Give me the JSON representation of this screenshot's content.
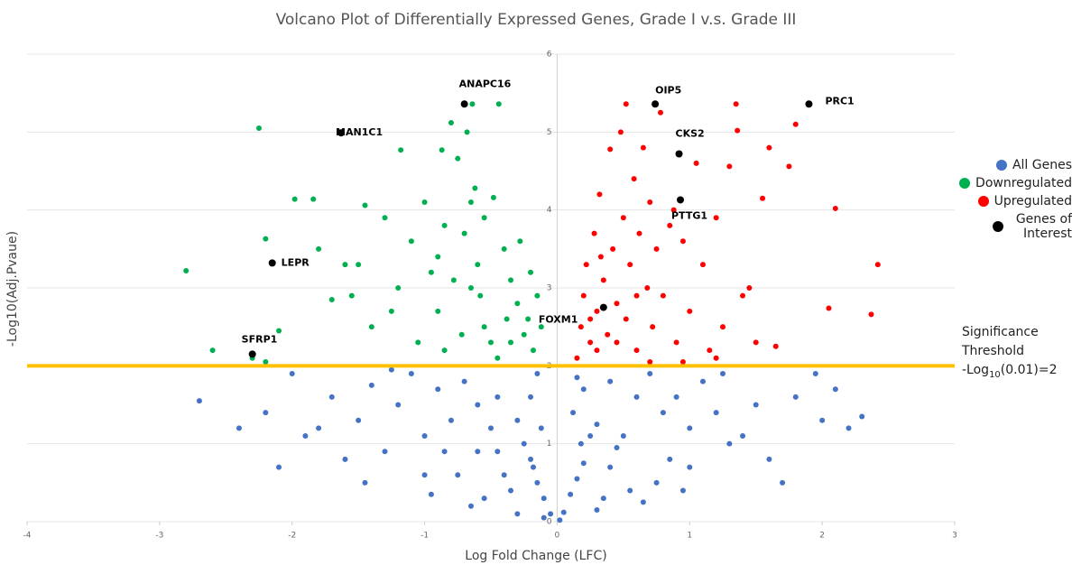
{
  "chart_data": {
    "type": "scatter",
    "title": "Volcano Plot of Differentially Expressed Genes, Grade I v.s. Grade III",
    "x_label": "Log Fold Change (LFC)",
    "y_label": "-Log10(Adj.Pvaue)",
    "xlim": [
      -4,
      3
    ],
    "xticks": [
      -4,
      -3,
      -2,
      -1,
      0,
      1,
      2,
      3
    ],
    "ylim": [
      0,
      6
    ],
    "yticks": [
      0,
      1,
      2,
      3,
      4,
      5,
      6
    ],
    "grid": true,
    "legend": "right",
    "threshold": 2,
    "threshold_color": "#ffc000",
    "annotation": {
      "title": "Significance Threshold",
      "prefix": "-Log",
      "sub": "10",
      "suffix": "(0.01)=2"
    },
    "series": [
      {
        "name": "All Genes",
        "color": "#4472c4",
        "x": [
          -0.05,
          0.05,
          -0.1,
          0.1,
          -0.15,
          0.15,
          -0.2,
          0.2,
          -0.25,
          0.25,
          -0.3,
          0.3,
          -0.2,
          0.2,
          -0.15,
          0.15,
          -0.4,
          0.4,
          -0.5,
          0.5,
          -0.6,
          0.6,
          -0.7,
          0.7,
          -0.35,
          0.35,
          -0.45,
          0.45,
          -0.55,
          0.55,
          -0.8,
          0.8,
          -0.9,
          0.9,
          -1.0,
          1.0,
          -1.1,
          1.1,
          -1.2,
          1.2,
          -1.3,
          1.3,
          -1.4,
          1.4,
          -1.5,
          1.5,
          -1.6,
          -1.7,
          -1.8,
          1.8,
          -2.0,
          2.0,
          -2.1,
          -2.2,
          2.2,
          -2.7,
          2.3,
          -1.9,
          1.6,
          -0.65,
          0.65,
          -0.75,
          0.75,
          -0.85,
          0.85,
          -0.3,
          0.3,
          -0.1,
          0.02,
          -1.0,
          1.0,
          -0.45,
          0.4,
          -0.6,
          1.7,
          -1.45,
          2.1,
          1.95,
          -2.4,
          1.25,
          -1.25,
          0.95,
          -0.95,
          0.12,
          -0.12,
          0.18,
          -0.18
        ],
        "values": [
          0.1,
          0.12,
          0.3,
          0.35,
          0.5,
          0.55,
          0.8,
          0.75,
          1.0,
          1.1,
          1.3,
          1.25,
          1.6,
          1.7,
          1.9,
          1.85,
          0.6,
          0.7,
          1.2,
          1.1,
          1.5,
          1.6,
          1.8,
          1.9,
          0.4,
          0.3,
          0.9,
          0.95,
          0.3,
          0.4,
          1.3,
          1.4,
          1.7,
          1.6,
          1.1,
          1.2,
          1.9,
          1.8,
          1.5,
          1.4,
          0.9,
          1.0,
          1.75,
          1.1,
          1.3,
          1.5,
          0.8,
          1.6,
          1.2,
          1.6,
          1.9,
          1.3,
          0.7,
          1.4,
          1.2,
          1.55,
          1.35,
          1.1,
          0.8,
          0.2,
          0.25,
          0.6,
          0.5,
          0.9,
          0.8,
          0.1,
          0.15,
          0.05,
          0.02,
          0.6,
          0.7,
          1.6,
          1.8,
          0.9,
          0.5,
          0.5,
          1.7,
          1.9,
          1.2,
          1.9,
          1.95,
          0.4,
          0.35,
          1.4,
          1.2,
          1.0,
          0.7
        ]
      },
      {
        "name": "Downregulated",
        "color": "#00b050",
        "x": [
          -2.8,
          -2.6,
          -2.25,
          -2.2,
          -2.1,
          -2.3,
          -2.2,
          -1.98,
          -1.8,
          -1.84,
          -1.7,
          -1.6,
          -1.5,
          -1.45,
          -1.4,
          -1.3,
          -1.2,
          -1.18,
          -1.1,
          -1.05,
          -1.0,
          -0.95,
          -0.9,
          -0.87,
          -0.85,
          -0.8,
          -0.78,
          -0.75,
          -0.72,
          -0.7,
          -0.68,
          -0.65,
          -0.64,
          -0.6,
          -0.58,
          -0.55,
          -0.5,
          -0.48,
          -0.44,
          -0.4,
          -0.38,
          -0.35,
          -0.3,
          -0.28,
          -0.25,
          -0.2,
          -0.18,
          -0.15,
          -0.12,
          -0.9,
          -1.25,
          -0.65,
          -0.45,
          -0.35,
          -0.22,
          -0.55,
          -0.85,
          -1.55,
          -0.62
        ],
        "values": [
          3.22,
          2.2,
          5.05,
          3.63,
          2.45,
          2.1,
          2.05,
          4.14,
          3.5,
          4.14,
          2.85,
          3.3,
          3.3,
          4.06,
          2.5,
          3.9,
          3.0,
          4.77,
          3.6,
          2.3,
          4.1,
          3.2,
          2.7,
          4.77,
          3.8,
          5.12,
          3.1,
          4.66,
          2.4,
          3.7,
          5.0,
          4.1,
          5.36,
          3.3,
          2.9,
          3.9,
          2.3,
          4.16,
          5.36,
          3.5,
          2.6,
          3.1,
          2.8,
          3.6,
          2.4,
          3.2,
          2.2,
          2.9,
          2.5,
          3.4,
          2.7,
          3.0,
          2.1,
          2.3,
          2.6,
          2.5,
          2.2,
          2.9,
          4.28
        ]
      },
      {
        "name": "Upregulated",
        "color": "#ff0000",
        "x": [
          0.15,
          0.18,
          0.2,
          0.22,
          0.25,
          0.28,
          0.3,
          0.32,
          0.35,
          0.38,
          0.4,
          0.42,
          0.45,
          0.48,
          0.5,
          0.52,
          0.52,
          0.55,
          0.58,
          0.6,
          0.62,
          0.65,
          0.68,
          0.7,
          0.72,
          0.75,
          0.78,
          0.8,
          0.85,
          0.88,
          0.9,
          0.95,
          1.0,
          1.05,
          1.1,
          1.15,
          1.2,
          1.25,
          1.3,
          1.35,
          1.36,
          1.4,
          1.45,
          1.5,
          1.55,
          1.6,
          1.65,
          1.75,
          1.8,
          2.05,
          2.1,
          2.37,
          2.42,
          1.2,
          0.95,
          0.3,
          0.45,
          0.25,
          0.6,
          0.33,
          0.7
        ],
        "values": [
          2.1,
          2.5,
          2.9,
          3.3,
          2.3,
          3.7,
          2.7,
          4.2,
          3.1,
          2.4,
          4.78,
          3.5,
          2.8,
          5.0,
          3.9,
          2.6,
          5.36,
          3.3,
          4.4,
          2.2,
          3.7,
          4.8,
          3.0,
          4.1,
          2.5,
          3.5,
          5.25,
          2.9,
          3.8,
          4.0,
          2.3,
          3.6,
          2.7,
          4.6,
          3.3,
          2.2,
          3.9,
          2.5,
          4.56,
          5.36,
          5.02,
          2.9,
          3.0,
          2.3,
          4.15,
          4.8,
          2.25,
          4.56,
          5.1,
          2.74,
          4.02,
          2.66,
          3.3,
          2.1,
          2.05,
          2.2,
          2.3,
          2.6,
          2.9,
          3.4,
          2.05
        ]
      },
      {
        "name": "Genes of Interest",
        "color": "#000000",
        "x": [
          -0.7,
          -1.63,
          -2.15,
          -2.3,
          0.74,
          1.9,
          0.92,
          0.93,
          0.35
        ],
        "values": [
          5.36,
          4.99,
          3.32,
          2.15,
          5.36,
          5.36,
          4.72,
          4.13,
          2.75
        ],
        "labels": [
          "ANAPC16",
          "MAN1C1",
          "LEPR",
          "SFRP1",
          "OIP5",
          "PRC1",
          "CKS2",
          "PTTG1",
          "FOXM1"
        ]
      }
    ]
  }
}
